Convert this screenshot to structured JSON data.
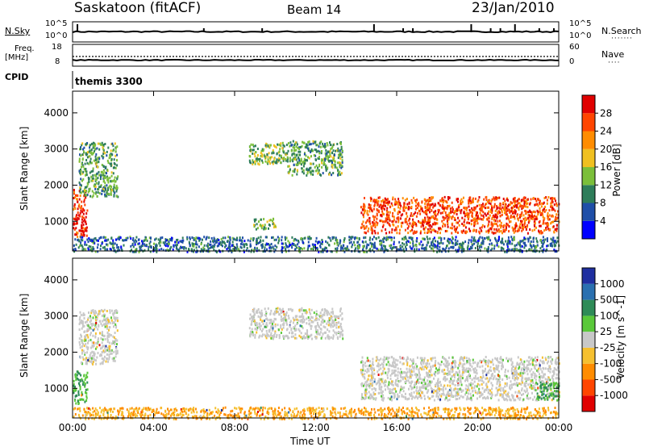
{
  "header": {
    "station": "Saskatoon (fitACF)",
    "beam": "Beam 14",
    "date": "23/Jan/2010"
  },
  "top_panels": {
    "nsky_label": "N.Sky",
    "nsky_ticks": [
      "10^5",
      "10^0"
    ],
    "nsearch_label": "N.Search",
    "freq_label_1": "Freq.",
    "freq_label_2": "[MHz]",
    "freq_ticks": [
      "18",
      "8"
    ],
    "nave_label": "Nave",
    "nave_ticks": [
      "60",
      "0"
    ],
    "cpid_label": "CPID",
    "cpid_value": "themis 3300"
  },
  "colors": {
    "power": [
      "#0000ff",
      "#1f4fa8",
      "#2e7d5a",
      "#7bbf3a",
      "#f0c020",
      "#ff8c00",
      "#ff4500",
      "#e00000"
    ],
    "velocity": [
      "#1f2fa0",
      "#2a70b0",
      "#2e8b57",
      "#5ac83a",
      "#c8c8c8",
      "#f5c030",
      "#ff8c00",
      "#ff4500",
      "#e00000"
    ],
    "ground_scatter": "#c8c8c8"
  },
  "chart_data": [
    {
      "type": "heatmap",
      "title": "Power",
      "xlabel": "Time UT",
      "ylabel": "Slant Range [km]",
      "x_ticks": [
        "00:00",
        "04:00",
        "08:00",
        "12:00",
        "16:00",
        "20:00",
        "00:00"
      ],
      "y_ticks": [
        1000,
        2000,
        3000,
        4000
      ],
      "ylim": [
        180,
        4600
      ],
      "xlim_hours": [
        0,
        24
      ],
      "colorbar_label": "Power [dB]",
      "colorbar_ticks": [
        "4",
        "8",
        "12",
        "16",
        "20",
        "24",
        "28"
      ],
      "regions": [
        {
          "t": [
            0.0,
            0.7
          ],
          "r": [
            600,
            1900
          ],
          "level": 26
        },
        {
          "t": [
            0.3,
            2.2
          ],
          "r": [
            1700,
            3200
          ],
          "level": 10
        },
        {
          "t": [
            8.7,
            10.6
          ],
          "r": [
            2600,
            3200
          ],
          "level": 12
        },
        {
          "t": [
            10.6,
            13.3
          ],
          "r": [
            2300,
            3250
          ],
          "level": 10
        },
        {
          "t": [
            8.9,
            10.0
          ],
          "r": [
            800,
            1100
          ],
          "level": 12
        },
        {
          "t": [
            14.2,
            24.0
          ],
          "r": [
            700,
            1700
          ],
          "level": 24
        },
        {
          "t": [
            0.0,
            24.0
          ],
          "r": [
            180,
            600
          ],
          "level": 6
        }
      ]
    },
    {
      "type": "heatmap",
      "title": "Velocity",
      "xlabel": "Time UT",
      "ylabel": "Slant Range [km]",
      "x_ticks": [
        "00:00",
        "04:00",
        "08:00",
        "12:00",
        "16:00",
        "20:00",
        "00:00"
      ],
      "y_ticks": [
        1000,
        2000,
        3000,
        4000
      ],
      "ylim": [
        180,
        4600
      ],
      "xlim_hours": [
        0,
        24
      ],
      "colorbar_label": "Velocity [m s^-1]",
      "colorbar_ticks": [
        "1000",
        "500",
        "100",
        "25",
        "-25",
        "-100",
        "-500",
        "-1000"
      ],
      "regions": [
        {
          "t": [
            0.0,
            0.7
          ],
          "r": [
            600,
            1500
          ],
          "level": 100
        },
        {
          "t": [
            0.3,
            2.2
          ],
          "r": [
            1700,
            3200
          ],
          "level": 0
        },
        {
          "t": [
            8.7,
            13.3
          ],
          "r": [
            2400,
            3250
          ],
          "level": 0
        },
        {
          "t": [
            14.2,
            24.0
          ],
          "r": [
            700,
            1900
          ],
          "level": 0
        },
        {
          "t": [
            0.0,
            24.0
          ],
          "r": [
            180,
            500
          ],
          "level": -100
        },
        {
          "t": [
            22.8,
            24.0
          ],
          "r": [
            700,
            1200
          ],
          "level": 100
        }
      ]
    }
  ]
}
